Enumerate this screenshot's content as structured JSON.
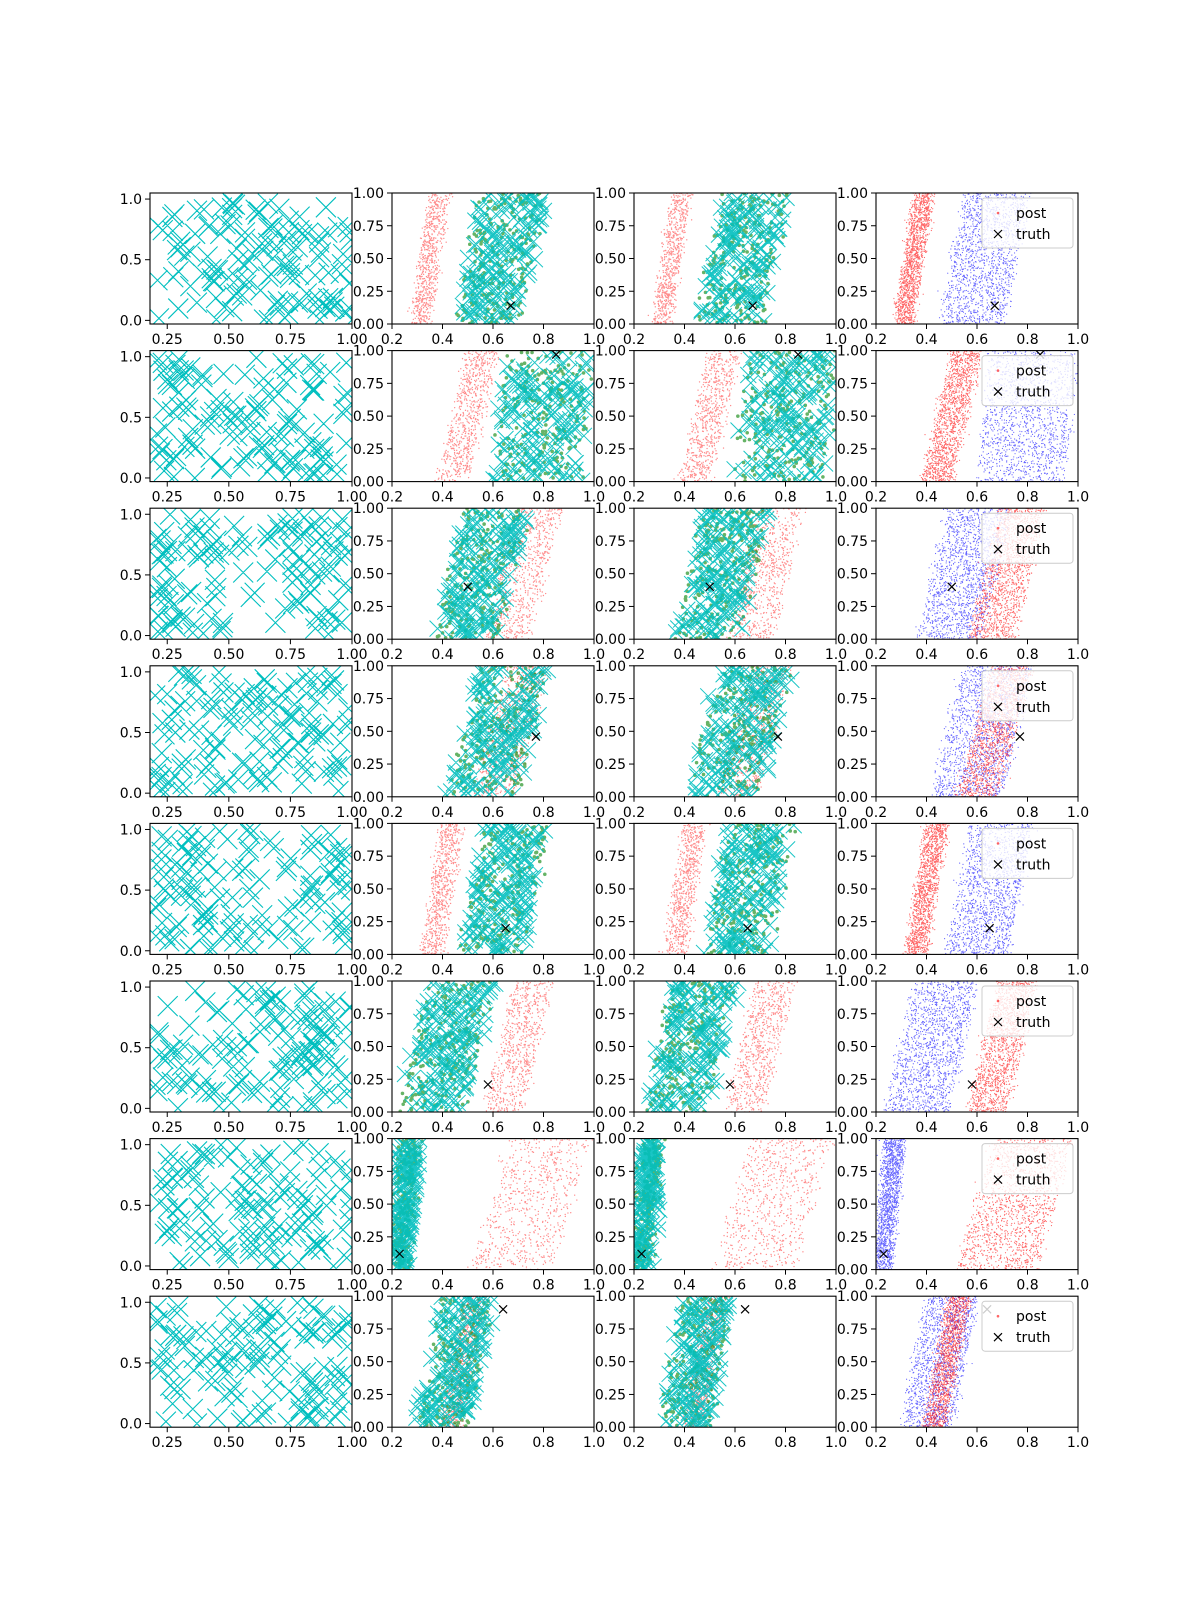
{
  "chart_data": {
    "type": "scatter",
    "layout": {
      "rows": 8,
      "cols": 4
    },
    "legend": {
      "position": "upper right",
      "entries": [
        "post",
        "truth"
      ]
    },
    "colors": {
      "prior": "#00bfbf",
      "sample": "#008000",
      "posterior_a": "#ff0000",
      "posterior_b": "#0000ff",
      "truth": "#000000"
    },
    "column_axes": [
      {
        "xlim": [
          0.18,
          1.0
        ],
        "ylim": [
          -0.03,
          1.05
        ],
        "xticks": [
          0.25,
          0.5,
          0.75,
          1.0
        ],
        "xtick_labels": [
          "0.25",
          "0.50",
          "0.75",
          "1.00"
        ],
        "yticks": [
          0.0,
          0.5,
          1.0
        ],
        "ytick_labels": [
          "0.0",
          "0.5",
          "1.0"
        ]
      },
      {
        "xlim": [
          0.2,
          1.0
        ],
        "ylim": [
          0.0,
          1.0
        ],
        "xticks": [
          0.2,
          0.4,
          0.6,
          0.8,
          1.0
        ],
        "xtick_labels": [
          "0.2",
          "0.4",
          "0.6",
          "0.8",
          "1.0"
        ],
        "yticks": [
          0.0,
          0.25,
          0.5,
          0.75,
          1.0
        ],
        "ytick_labels": [
          "0.00",
          "0.25",
          "0.50",
          "0.75",
          "1.00"
        ]
      },
      {
        "xlim": [
          0.2,
          1.0
        ],
        "ylim": [
          0.0,
          1.0
        ],
        "xticks": [
          0.2,
          0.4,
          0.6,
          0.8,
          1.0
        ],
        "xtick_labels": [
          "0.2",
          "0.4",
          "0.6",
          "0.8",
          "1.0"
        ],
        "yticks": [
          0.0,
          0.25,
          0.5,
          0.75,
          1.0
        ],
        "ytick_labels": [
          "0.00",
          "0.25",
          "0.50",
          "0.75",
          "1.00"
        ]
      },
      {
        "xlim": [
          0.2,
          1.0
        ],
        "ylim": [
          0.0,
          1.0
        ],
        "xticks": [
          0.2,
          0.4,
          0.6,
          0.8,
          1.0
        ],
        "xtick_labels": [
          "0.2",
          "0.4",
          "0.6",
          "0.8",
          "1.0"
        ],
        "yticks": [
          0.0,
          0.25,
          0.5,
          0.75,
          1.0
        ],
        "ytick_labels": [
          "0.00",
          "0.25",
          "0.50",
          "0.75",
          "1.00"
        ]
      }
    ],
    "rows": [
      {
        "truth": [
          0.67,
          0.14
        ],
        "red": {
          "center": 0.35,
          "width": 0.07,
          "slope": 0.08
        },
        "other": {
          "center": 0.63,
          "width": 0.26,
          "slope": 0.1
        },
        "third_order": "red_over"
      },
      {
        "truth": [
          0.85,
          0.97
        ],
        "red": {
          "center": 0.5,
          "width": 0.12,
          "slope": 0.12
        },
        "other": {
          "center": 0.8,
          "width": 0.35,
          "slope": 0.05
        },
        "third_order": "red_over"
      },
      {
        "truth": [
          0.5,
          0.4
        ],
        "red": {
          "center": 0.72,
          "width": 0.18,
          "slope": 0.12
        },
        "other": {
          "center": 0.55,
          "width": 0.25,
          "slope": 0.12
        },
        "third_order": "red_over"
      },
      {
        "truth": [
          0.77,
          0.46
        ],
        "red": {
          "center": 0.67,
          "width": 0.16,
          "slope": 0.14
        },
        "other": {
          "center": 0.62,
          "width": 0.28,
          "slope": 0.12
        },
        "third_order": "red_over"
      },
      {
        "truth": [
          0.65,
          0.2
        ],
        "red": {
          "center": 0.4,
          "width": 0.08,
          "slope": 0.08
        },
        "other": {
          "center": 0.65,
          "width": 0.25,
          "slope": 0.1
        },
        "third_order": "red_over"
      },
      {
        "truth": [
          0.58,
          0.21
        ],
        "red": {
          "center": 0.7,
          "width": 0.15,
          "slope": 0.12
        },
        "other": {
          "center": 0.42,
          "width": 0.25,
          "slope": 0.12
        },
        "third_order": "blue_over"
      },
      {
        "truth": [
          0.23,
          0.12
        ],
        "red": {
          "center": 0.75,
          "width": 0.32,
          "slope": 0.15
        },
        "other": {
          "center": 0.25,
          "width": 0.07,
          "slope": 0.05
        },
        "third_order": "blue_over"
      },
      {
        "truth": [
          0.64,
          0.9
        ],
        "red": {
          "center": 0.48,
          "width": 0.08,
          "slope": 0.1
        },
        "other": {
          "center": 0.45,
          "width": 0.2,
          "slope": 0.1
        },
        "third_order": "red_over"
      }
    ]
  }
}
